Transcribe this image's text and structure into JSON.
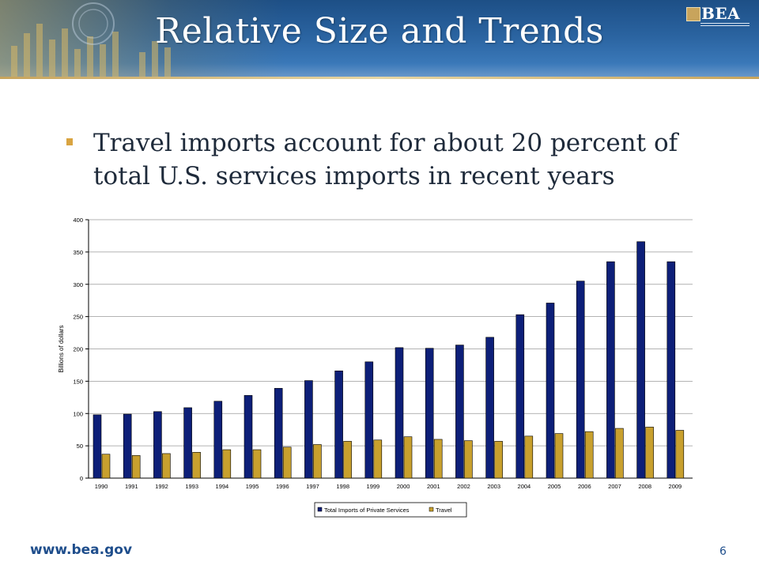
{
  "slide": {
    "title": "Relative Size and Trends",
    "bullet": "Travel imports account for about 20 percent of total U.S. services imports in recent years",
    "logo_text": "BEA",
    "footer_url": "www.bea.gov",
    "page_number": "6"
  },
  "colors": {
    "total_series": "#0d1f78",
    "travel_series": "#c8a02e",
    "banner": "#2a63a0",
    "bullet": "#d9a441"
  },
  "chart_data": {
    "type": "bar",
    "categories": [
      "1990",
      "1991",
      "1992",
      "1993",
      "1994",
      "1995",
      "1996",
      "1997",
      "1998",
      "1999",
      "2000",
      "2001",
      "2002",
      "2003",
      "2004",
      "2005",
      "2006",
      "2007",
      "2008",
      "2009"
    ],
    "series": [
      {
        "name": "Total Imports of Private Services",
        "values": [
          98,
          99,
          103,
          109,
          119,
          128,
          139,
          151,
          166,
          180,
          202,
          201,
          206,
          218,
          253,
          271,
          305,
          335,
          366,
          335
        ]
      },
      {
        "name": "Travel",
        "values": [
          37,
          35,
          38,
          40,
          44,
          44,
          48,
          52,
          57,
          59,
          64,
          60,
          58,
          57,
          65,
          69,
          72,
          77,
          79,
          74
        ]
      }
    ],
    "title": "",
    "xlabel": "",
    "ylabel": "Billions of dollars",
    "ylim": [
      0,
      400
    ],
    "yticks": [
      0,
      50,
      100,
      150,
      200,
      250,
      300,
      350,
      400
    ],
    "grid": true,
    "legend": "bottom-center"
  }
}
